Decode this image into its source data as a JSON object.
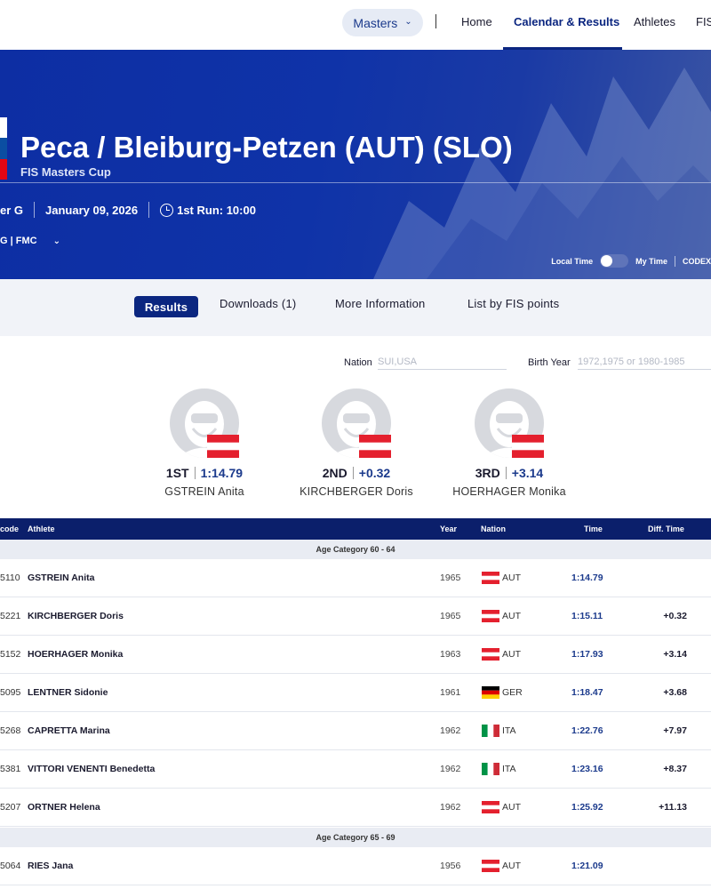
{
  "nav": {
    "selector_label": "Masters",
    "links": [
      "Home",
      "Calendar & Results",
      "Athletes",
      "FIS"
    ]
  },
  "event": {
    "title": "Peca / Bleiburg-Petzen (AUT) (SLO)",
    "subtitle": "FIS Masters Cup",
    "discipline": "er G",
    "date": "January 09, 2026",
    "first_run": "1st Run: 10:00",
    "codes": "G | FMC",
    "local_time_label": "Local Time",
    "my_time_label": "My Time",
    "codex_label": "CODEX"
  },
  "tabs": [
    "Results",
    "Downloads (1)",
    "More Information",
    "List by FIS points"
  ],
  "filters": {
    "nation_label": "Nation",
    "nation_placeholder": "SUI,USA",
    "birth_label": "Birth Year",
    "birth_placeholder": "1972,1975 or 1980-1985"
  },
  "podium": [
    {
      "rank": "1ST",
      "time": "1:14.79",
      "name": "GSTREIN Anita"
    },
    {
      "rank": "2ND",
      "time": "+0.32",
      "name": "KIRCHBERGER Doris"
    },
    {
      "rank": "3RD",
      "time": "+3.14",
      "name": "HOERHAGER Monika"
    }
  ],
  "table": {
    "headers": {
      "code": "code",
      "athlete": "Athlete",
      "year": "Year",
      "nation": "Nation",
      "time": "Time",
      "diff": "Diff. Time"
    },
    "categories": [
      "Age Category 60 - 64",
      "Age Category 65 - 69"
    ],
    "rows": [
      {
        "code": "5110",
        "name": "GSTREIN Anita",
        "year": "1965",
        "nation": "AUT",
        "time": "1:14.79",
        "diff": ""
      },
      {
        "code": "5221",
        "name": "KIRCHBERGER Doris",
        "year": "1965",
        "nation": "AUT",
        "time": "1:15.11",
        "diff": "+0.32"
      },
      {
        "code": "5152",
        "name": "HOERHAGER Monika",
        "year": "1963",
        "nation": "AUT",
        "time": "1:17.93",
        "diff": "+3.14"
      },
      {
        "code": "5095",
        "name": "LENTNER Sidonie",
        "year": "1961",
        "nation": "GER",
        "time": "1:18.47",
        "diff": "+3.68"
      },
      {
        "code": "5268",
        "name": "CAPRETTA Marina",
        "year": "1962",
        "nation": "ITA",
        "time": "1:22.76",
        "diff": "+7.97"
      },
      {
        "code": "5381",
        "name": "VITTORI VENENTI Benedetta",
        "year": "1962",
        "nation": "ITA",
        "time": "1:23.16",
        "diff": "+8.37"
      },
      {
        "code": "5207",
        "name": "ORTNER Helena",
        "year": "1962",
        "nation": "AUT",
        "time": "1:25.92",
        "diff": "+11.13"
      },
      {
        "code": "5064",
        "name": "RIES Jana",
        "year": "1956",
        "nation": "AUT",
        "time": "1:21.09",
        "diff": ""
      }
    ]
  },
  "colors": {
    "brand": "#0b2680",
    "hero": "#0f33a8",
    "header": "#0b1f6b"
  }
}
